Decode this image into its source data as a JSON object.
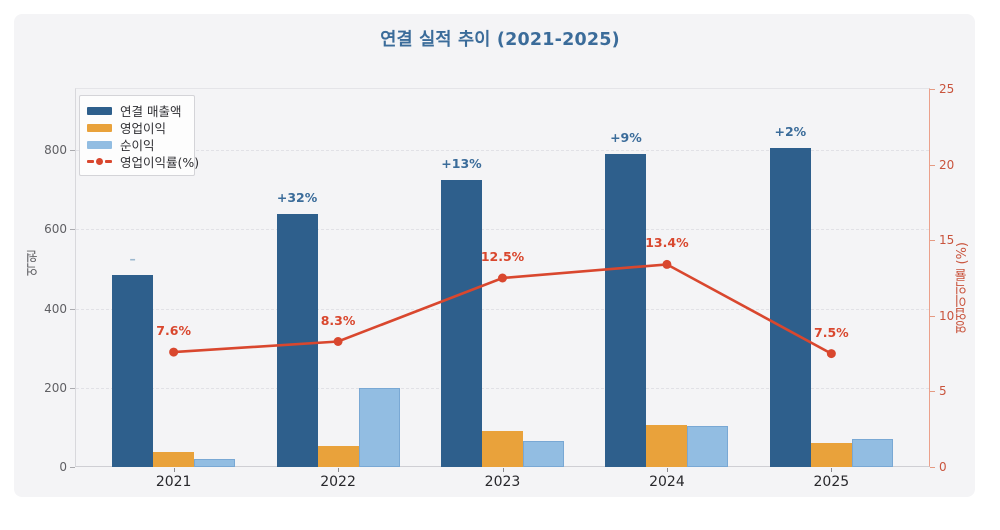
{
  "chart_data": {
    "type": "bar",
    "title": "연결 실적 추이 (2021-2025)",
    "unit": "억원",
    "categories": [
      "2021",
      "2022",
      "2023",
      "2024",
      "2025"
    ],
    "series": [
      {
        "name": "연결 매출액",
        "type": "bar",
        "axis": "left",
        "color": "#2e5f8c",
        "values": [
          485,
          640,
          725,
          790,
          805
        ]
      },
      {
        "name": "영업이익",
        "type": "bar",
        "axis": "left",
        "color": "#e9a23b",
        "values": [
          37,
          53,
          90,
          105,
          60
        ]
      },
      {
        "name": "순이익",
        "type": "bar",
        "axis": "left",
        "color": "#92bde2",
        "border": "#79a8d4",
        "values": [
          20,
          200,
          65,
          103,
          70
        ]
      },
      {
        "name": "영업이익률(%)",
        "type": "line",
        "axis": "right",
        "color": "#d9472e",
        "values": [
          7.6,
          8.3,
          12.5,
          13.4,
          7.5
        ]
      }
    ],
    "growth_annotations": [
      "–",
      "+32%",
      "+13%",
      "+9%",
      "+2%"
    ],
    "margin_labels": [
      "7.6%",
      "8.3%",
      "12.5%",
      "13.4%",
      "7.5%"
    ],
    "left_axis": {
      "label": "억원",
      "ticks": [
        0,
        200,
        400,
        600,
        800
      ],
      "range": [
        0,
        956
      ]
    },
    "right_axis": {
      "label": "영업이익률 (%)",
      "ticks": [
        0,
        5,
        10,
        15,
        20,
        25
      ],
      "range": [
        0,
        25
      ]
    },
    "legend": [
      "연결 매출액",
      "영업이익",
      "순이익",
      "영업이익률(%)"
    ],
    "legend_position": "top-left",
    "grid": "horizontal-dashed"
  },
  "colors": {
    "background_card": "#f4f4f6",
    "title_blue": "#3b6c9a",
    "revenue_bar": "#2e5f8c",
    "op_income_bar": "#e9a23b",
    "net_income_bar": "#92bde2",
    "margin_line": "#d9472e",
    "right_axis_text": "#c9543d",
    "muted_annotation": "#9cb8cf"
  }
}
